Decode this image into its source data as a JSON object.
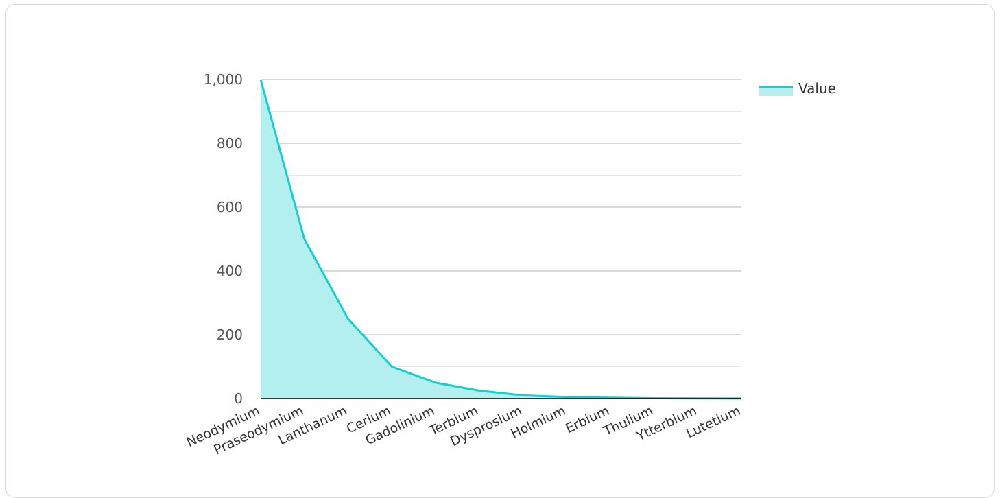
{
  "chart_data": {
    "type": "area",
    "categories": [
      "Neodymium",
      "Praseodymium",
      "Lanthanum",
      "Cerium",
      "Gadolinium",
      "Terbium",
      "Dysprosium",
      "Holmium",
      "Erbium",
      "Thulium",
      "Ytterbium",
      "Lutetium"
    ],
    "series": [
      {
        "name": "Value",
        "values": [
          1000,
          500,
          250,
          100,
          50,
          25,
          10,
          5,
          2.5,
          1,
          0.5,
          0.25
        ]
      }
    ],
    "ylim": [
      0,
      1000
    ],
    "yticks": [
      0,
      200,
      400,
      600,
      800,
      1000
    ],
    "ytick_labels": [
      "0",
      "200",
      "400",
      "600",
      "800",
      "1,000"
    ],
    "grid": true,
    "legend_position": "right"
  },
  "colors": {
    "line": "#14cfcf",
    "fill": "#b2efee",
    "grid_major": "#b5b5b5",
    "grid_minor": "#e6e6e6",
    "axis": "#000000"
  }
}
